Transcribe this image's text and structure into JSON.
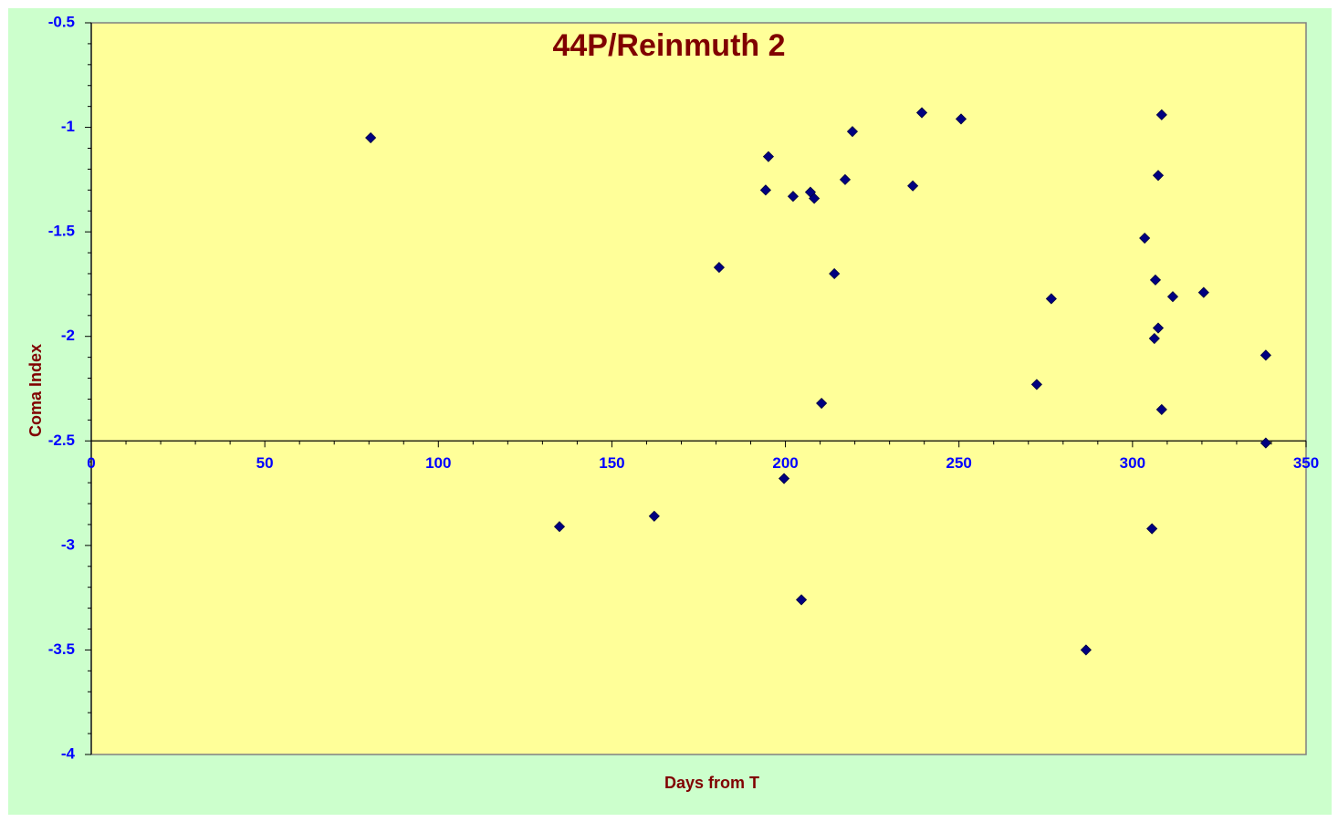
{
  "chart_data": {
    "type": "scatter",
    "title": "44P/Reinmuth 2",
    "xlabel": "Days from T",
    "ylabel": "Coma Index",
    "series": [
      {
        "name": "44P/Reinmuth 2",
        "color": "#000080",
        "x": [
          80.5,
          134.9,
          162.2,
          180.9,
          194.3,
          195.1,
          199.6,
          202.2,
          204.6,
          207.2,
          208.3,
          210.4,
          214.1,
          217.2,
          219.3,
          236.7,
          239.3,
          250.6,
          272.4,
          276.6,
          286.6,
          303.5,
          305.6,
          306.3,
          306.6,
          307.4,
          307.4,
          308.4,
          308.4,
          311.6,
          320.5,
          338.4,
          338.4
        ],
        "values": [
          -1.05,
          -2.91,
          -2.86,
          -1.67,
          -1.3,
          -1.14,
          -2.68,
          -1.33,
          -3.26,
          -1.31,
          -1.34,
          -2.32,
          -1.7,
          -1.25,
          -1.02,
          -1.28,
          -0.93,
          -0.96,
          -2.23,
          -1.82,
          -3.5,
          -1.53,
          -2.92,
          -2.01,
          -1.73,
          -1.23,
          -1.96,
          -0.94,
          -2.35,
          -1.81,
          -1.79,
          -2.09,
          -2.51
        ]
      }
    ],
    "xlim": [
      0,
      350
    ],
    "xticks": [
      0,
      50,
      100,
      150,
      200,
      250,
      300,
      350
    ],
    "ylim": [
      -4,
      -0.5
    ],
    "yticks": [
      -0.5,
      -1,
      -1.5,
      -2,
      -2.5,
      -3,
      -3.5,
      -4
    ],
    "x_axis_crosses_at": -2.5,
    "grid": false,
    "legend": false
  }
}
